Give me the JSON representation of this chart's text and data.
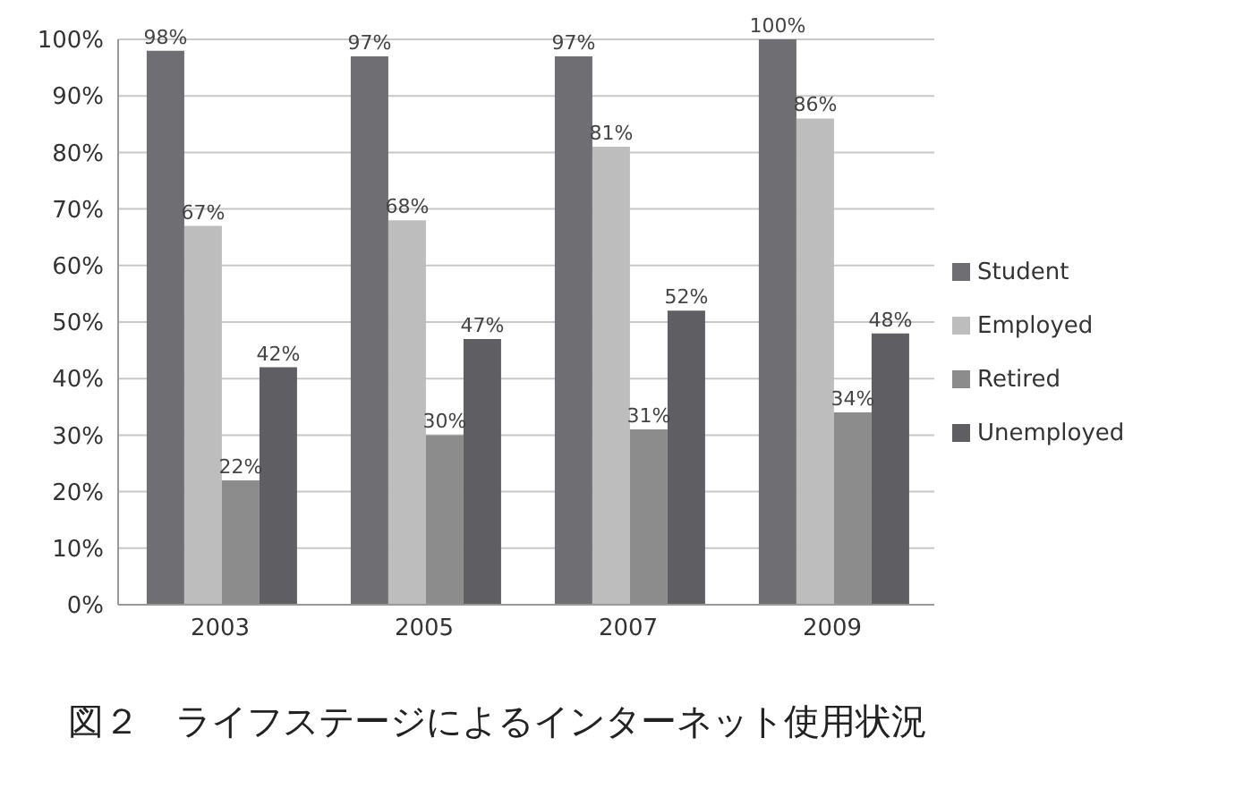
{
  "chart_data": {
    "type": "bar",
    "title": "図２　ライフステージによるインターネット使用状況",
    "categories": [
      "2003",
      "2005",
      "2007",
      "2009"
    ],
    "series": [
      {
        "name": "Student",
        "color": "#6e6e73",
        "values": [
          98,
          97,
          97,
          100
        ],
        "value_labels": [
          "98%",
          "97%",
          "97%",
          "100%"
        ]
      },
      {
        "name": "Employed",
        "color": "#bdbdbd",
        "values": [
          67,
          68,
          81,
          86
        ],
        "value_labels": [
          "67%",
          "68%",
          "81%",
          "86%"
        ]
      },
      {
        "name": "Retired",
        "color": "#8c8c8c",
        "values": [
          22,
          30,
          31,
          34
        ],
        "value_labels": [
          "22%",
          "30%",
          "31%",
          "34%"
        ]
      },
      {
        "name": "Unemployed",
        "color": "#5f5f63",
        "values": [
          42,
          47,
          52,
          48
        ],
        "value_labels": [
          "42%",
          "47%",
          "52%",
          "48%"
        ]
      }
    ],
    "ylim": [
      0,
      100
    ],
    "yticks": [
      {
        "value": 0,
        "label": "0%"
      },
      {
        "value": 10,
        "label": "10%"
      },
      {
        "value": 20,
        "label": "20%"
      },
      {
        "value": 30,
        "label": "30%"
      },
      {
        "value": 40,
        "label": "40%"
      },
      {
        "value": 50,
        "label": "50%"
      },
      {
        "value": 60,
        "label": "60%"
      },
      {
        "value": 70,
        "label": "70%"
      },
      {
        "value": 80,
        "label": "80%"
      },
      {
        "value": 90,
        "label": "90%"
      },
      {
        "value": 100,
        "label": "100%"
      }
    ],
    "grid": "y",
    "legend": "right"
  }
}
